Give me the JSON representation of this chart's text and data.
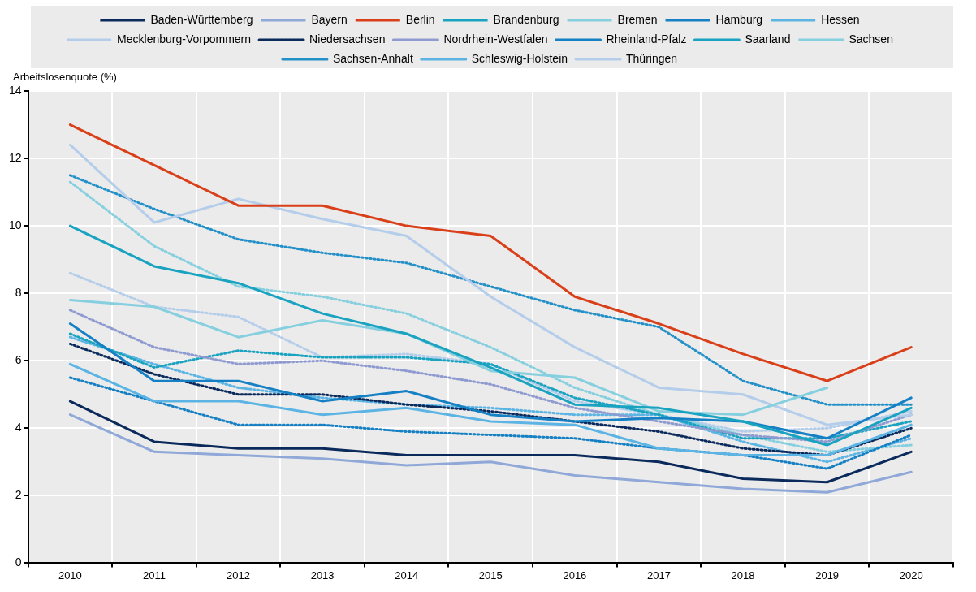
{
  "chart_data": {
    "type": "line",
    "ylabel": "Arbeitslosenquote (%)",
    "categories": [
      "2010",
      "2011",
      "2012",
      "2013",
      "2014",
      "2015",
      "2016",
      "2017",
      "2018",
      "2019",
      "2020"
    ],
    "ylim": [
      0,
      14
    ],
    "yticks": [
      0,
      2,
      4,
      6,
      8,
      10,
      12,
      14
    ],
    "grid": true,
    "legend": "top",
    "marker": "none",
    "series": [
      {
        "name": "Baden-Württemberg",
        "color": "#0b2a5c",
        "line_style": "solid",
        "values": [
          4.8,
          3.6,
          3.4,
          3.4,
          3.2,
          3.2,
          3.2,
          3.0,
          2.5,
          2.4,
          3.3
        ]
      },
      {
        "name": "Bayern",
        "color": "#8fa8d8",
        "line_style": "solid",
        "values": [
          4.4,
          3.3,
          3.2,
          3.1,
          2.9,
          3.0,
          2.6,
          2.4,
          2.2,
          2.1,
          2.7
        ]
      },
      {
        "name": "Berlin",
        "color": "#d9401a",
        "line_style": "solid",
        "values": [
          13.0,
          11.8,
          10.6,
          10.6,
          10.0,
          9.7,
          7.9,
          7.1,
          6.2,
          5.4,
          6.4
        ]
      },
      {
        "name": "Brandenburg",
        "color": "#1aa3c0",
        "line_style": "solid",
        "values": [
          10.0,
          8.8,
          8.3,
          7.4,
          6.8,
          5.8,
          4.7,
          4.6,
          4.2,
          3.5,
          4.6
        ]
      },
      {
        "name": "Bremen",
        "color": "#86cfdf",
        "line_style": "solid",
        "values": [
          7.8,
          7.6,
          6.7,
          7.2,
          6.8,
          5.7,
          5.5,
          4.5,
          4.4,
          5.2,
          null
        ]
      },
      {
        "name": "Hamburg",
        "color": "#1680c4",
        "line_style": "solid",
        "values": [
          7.1,
          5.4,
          5.4,
          4.8,
          5.1,
          4.4,
          4.2,
          4.3,
          4.2,
          3.7,
          4.9
        ]
      },
      {
        "name": "Hessen",
        "color": "#5cb4e4",
        "line_style": "solid",
        "values": [
          5.9,
          4.8,
          4.8,
          4.4,
          4.6,
          4.2,
          4.1,
          3.4,
          3.2,
          3.2,
          4.1
        ]
      },
      {
        "name": "Mecklenburg-Vorpommern",
        "color": "#b4cdea",
        "line_style": "solid",
        "values": [
          12.4,
          10.1,
          10.8,
          10.2,
          9.7,
          7.9,
          6.4,
          5.2,
          5.0,
          4.1,
          4.4
        ]
      },
      {
        "name": "Niedersachsen",
        "color": "#0b2a5c",
        "line_style": "dotted",
        "values": [
          6.5,
          5.6,
          5.0,
          5.0,
          4.7,
          4.5,
          4.2,
          3.9,
          3.4,
          3.2,
          4.0
        ]
      },
      {
        "name": "Nordrhein-Westfalen",
        "color": "#8f9bd0",
        "line_style": "dotted",
        "values": [
          7.5,
          6.4,
          5.9,
          6.0,
          5.7,
          5.3,
          4.6,
          4.2,
          3.8,
          3.6,
          4.4
        ]
      },
      {
        "name": "Rheinland-Pfalz",
        "color": "#1680c4",
        "line_style": "dotted",
        "values": [
          5.5,
          4.8,
          4.1,
          4.1,
          3.9,
          3.8,
          3.7,
          3.4,
          3.2,
          2.8,
          3.8
        ]
      },
      {
        "name": "Saarland",
        "color": "#1aa3c0",
        "line_style": "dotted",
        "values": [
          6.8,
          5.8,
          6.3,
          6.1,
          6.1,
          5.9,
          4.9,
          4.4,
          3.7,
          3.7,
          4.2
        ]
      },
      {
        "name": "Sachsen",
        "color": "#86cfdf",
        "line_style": "dotted",
        "values": [
          11.3,
          9.4,
          8.2,
          7.9,
          7.4,
          6.4,
          5.2,
          4.4,
          3.8,
          3.3,
          3.5
        ]
      },
      {
        "name": "Sachsen-Anhalt",
        "color": "#2390c8",
        "line_style": "dotted",
        "values": [
          11.5,
          10.5,
          9.6,
          9.2,
          8.9,
          8.2,
          7.5,
          7.0,
          5.4,
          4.7,
          4.7
        ]
      },
      {
        "name": "Schleswig-Holstein",
        "color": "#5cb4e4",
        "line_style": "dotted",
        "values": [
          6.7,
          5.9,
          5.2,
          4.9,
          4.7,
          4.6,
          4.4,
          4.4,
          3.6,
          3.0,
          3.7
        ]
      },
      {
        "name": "Thüringen",
        "color": "#b4cdea",
        "line_style": "dotted",
        "values": [
          8.6,
          7.6,
          7.3,
          6.1,
          6.2,
          5.9,
          4.8,
          4.4,
          3.9,
          4.0,
          4.5
        ]
      }
    ]
  }
}
